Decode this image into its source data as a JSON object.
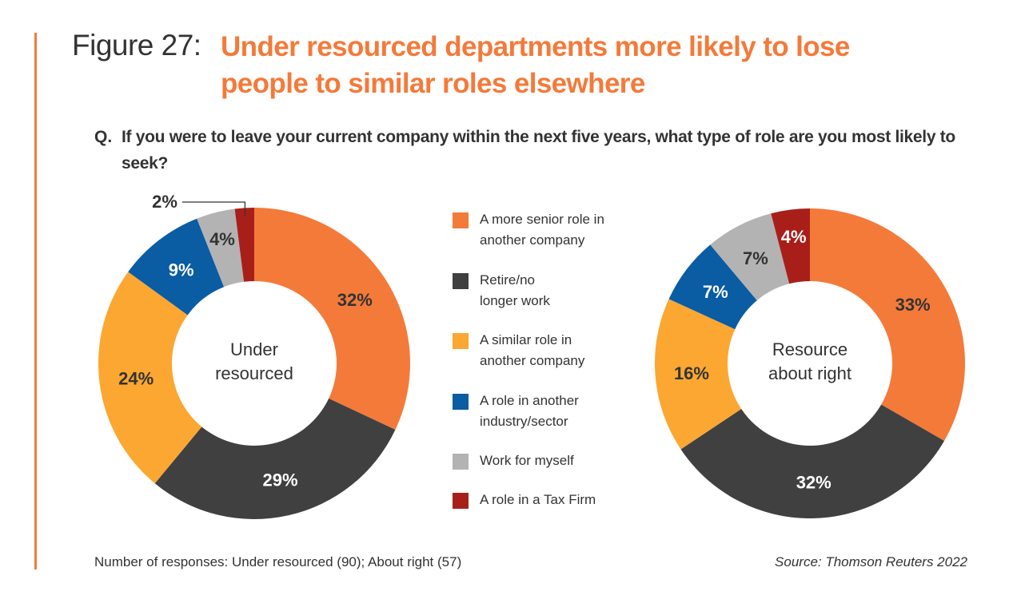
{
  "figure": {
    "label": "Figure 27:",
    "title_line1": "Under resourced departments more likely to lose",
    "title_line2": "people to similar roles elsewhere",
    "accent_color": "#f47a3a"
  },
  "question": {
    "prefix": "Q.",
    "text": "If you were to leave your current company within the next five years, what type of role are you most likely to seek?"
  },
  "footer": {
    "note": "Number of responses: Under resourced (90); About right (57)",
    "source": "Source: Thomson Reuters 2022"
  },
  "chart_data": [
    {
      "type": "pie",
      "variant": "donut",
      "title": "Under resourced",
      "title_lines": [
        "Under",
        "resourced"
      ],
      "responses": 90,
      "categories": [
        "A more senior role in another company",
        "Retire/no longer work",
        "A similar role in another company",
        "A role in another industry/sector",
        "Work for myself",
        "A role in a Tax Firm"
      ],
      "values": [
        32,
        29,
        24,
        9,
        4,
        2
      ],
      "labels": [
        "32%",
        "29%",
        "24%",
        "9%",
        "4%",
        "2%"
      ],
      "unit": "%",
      "start": "12 o'clock",
      "direction": "clockwise",
      "callouts": [
        "2%"
      ]
    },
    {
      "type": "pie",
      "variant": "donut",
      "title": "Resource about right",
      "title_lines": [
        "Resource",
        "about right"
      ],
      "responses": 57,
      "categories": [
        "A more senior role in another company",
        "Retire/no longer work",
        "A similar role in another company",
        "A role in another industry/sector",
        "Work for myself",
        "A role in a Tax Firm"
      ],
      "values": [
        33,
        32,
        16,
        7,
        7,
        4
      ],
      "labels": [
        "33%",
        "32%",
        "16%",
        "7%",
        "7%",
        "4%"
      ],
      "unit": "%",
      "start": "12 o'clock",
      "direction": "clockwise"
    }
  ],
  "legend": {
    "placement": "center",
    "items": [
      {
        "label_line1": "A more senior role in",
        "label_line2": "another company",
        "color": "#f47a3a"
      },
      {
        "label_line1": "Retire/no",
        "label_line2": "longer work",
        "color": "#404040"
      },
      {
        "label_line1": "A similar role in",
        "label_line2": "another company",
        "color": "#fba732"
      },
      {
        "label_line1": "A role in another",
        "label_line2": "industry/sector",
        "color": "#0a5ca3"
      },
      {
        "label_line1": "Work for myself",
        "label_line2": "",
        "color": "#b3b3b3"
      },
      {
        "label_line1": "A role in a Tax Firm",
        "label_line2": "",
        "color": "#a81f1a"
      }
    ]
  },
  "label_colors": {
    "dark": "#333333",
    "light": "#ffffff"
  }
}
